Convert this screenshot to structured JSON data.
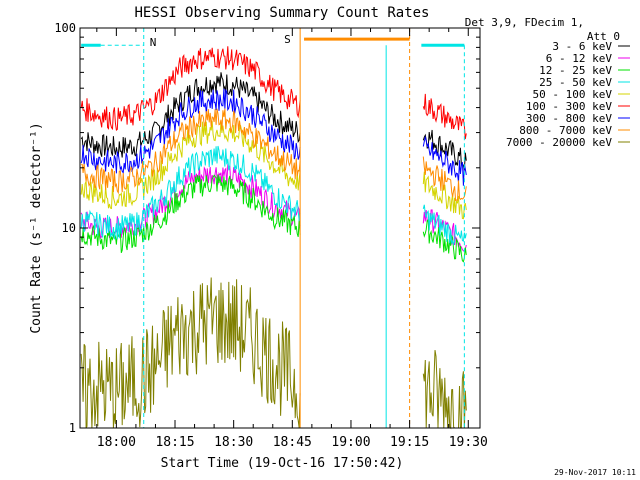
{
  "chart_data": {
    "type": "line",
    "title": "HESSI Observing Summary Count Rates",
    "xlabel": "Start Time (19-Oct-16 17:50:42)",
    "ylabel": "Count Rate (s⁻¹ detector⁻¹)",
    "x_ticks": [
      "18:00",
      "18:15",
      "18:30",
      "18:45",
      "19:00",
      "19:15",
      "19:30"
    ],
    "x_tick_minutes": [
      0,
      15,
      30,
      45,
      60,
      75,
      90
    ],
    "xlim_minutes_from_18_00": [
      -9.3,
      93
    ],
    "y_scale": "log",
    "ylim": [
      1,
      100
    ],
    "y_ticks": [
      "1",
      "10",
      "100"
    ],
    "legend_header": [
      "Det 3,9, FDecim 1,",
      "Att 0"
    ],
    "legend_position": "top-right outside plot",
    "timestamp": "29-Nov-2017 10:11",
    "series": [
      {
        "name": "3 - 6 keV",
        "color": "#000000",
        "x": [
          -9,
          -5,
          0,
          5,
          10,
          13,
          16,
          20,
          25,
          30,
          35,
          40,
          44,
          47
        ],
        "y": [
          28,
          26,
          25,
          26,
          30,
          36,
          42,
          50,
          54,
          52,
          45,
          36,
          32,
          30
        ]
      },
      {
        "name": "6 - 12 keV",
        "color": "#ee00ee",
        "x": [
          -9,
          -5,
          0,
          5,
          10,
          13,
          16,
          20,
          25,
          30,
          35,
          40,
          44,
          47
        ],
        "y": [
          11,
          10,
          10,
          10.5,
          12,
          14,
          16,
          18,
          19,
          18,
          16,
          13,
          12,
          11
        ]
      },
      {
        "name": "12 - 25 keV",
        "color": "#00e000",
        "x": [
          -9,
          -5,
          0,
          5,
          10,
          13,
          16,
          20,
          25,
          30,
          35,
          40,
          44,
          47
        ],
        "y": [
          9.5,
          9,
          8.5,
          9,
          10.5,
          12,
          14,
          16,
          17,
          16,
          14,
          11.5,
          10.5,
          10
        ]
      },
      {
        "name": "25 - 50 keV",
        "color": "#00e5e5",
        "x": [
          -9,
          -5,
          0,
          5,
          10,
          13,
          16,
          20,
          25,
          30,
          35,
          40,
          44,
          47
        ],
        "y": [
          11,
          10.5,
          10,
          10.5,
          13,
          15,
          18,
          21,
          23,
          22,
          19,
          15,
          13,
          12
        ]
      },
      {
        "name": "50 - 100 keV",
        "color": "#d4d400",
        "x": [
          -9,
          -5,
          0,
          5,
          10,
          13,
          16,
          20,
          25,
          30,
          35,
          40,
          44,
          47
        ],
        "y": [
          16,
          15,
          14,
          15,
          18,
          21,
          25,
          29,
          31,
          30,
          26,
          21,
          18,
          17
        ]
      },
      {
        "name": "100 - 300 keV",
        "color": "#ff0000",
        "x": [
          -9,
          -5,
          0,
          5,
          10,
          13,
          16,
          20,
          25,
          30,
          35,
          40,
          44,
          47
        ],
        "y": [
          40,
          37,
          35,
          37,
          43,
          52,
          62,
          70,
          72,
          70,
          62,
          50,
          44,
          41
        ]
      },
      {
        "name": "300 - 800 keV",
        "color": "#0000ff",
        "x": [
          -9,
          -5,
          0,
          5,
          10,
          13,
          16,
          20,
          25,
          30,
          35,
          40,
          44,
          47
        ],
        "y": [
          24,
          22,
          21,
          22,
          26,
          31,
          37,
          42,
          44,
          43,
          37,
          30,
          26,
          24
        ]
      },
      {
        "name": "800 - 7000 keV",
        "color": "#ff8c00",
        "x": [
          -9,
          -5,
          0,
          5,
          10,
          13,
          16,
          20,
          25,
          30,
          35,
          40,
          44,
          47
        ],
        "y": [
          19,
          18,
          17,
          18,
          21,
          25,
          29,
          33,
          35,
          34,
          29,
          24,
          21,
          19
        ]
      },
      {
        "name": "7000 - 20000 keV",
        "color": "#808000",
        "x": [
          -9,
          -5,
          0,
          5,
          10,
          13,
          16,
          20,
          25,
          30,
          35,
          40,
          44,
          47
        ],
        "y": [
          1.5,
          1.6,
          1.5,
          1.7,
          2,
          2.5,
          3,
          3.2,
          3.5,
          3.3,
          2.8,
          2.2,
          1.8,
          1.6
        ]
      }
    ],
    "annotations": [
      {
        "label": "N",
        "color": "#00e5e5"
      },
      {
        "label": "S",
        "color": "#ff8c00"
      }
    ]
  }
}
